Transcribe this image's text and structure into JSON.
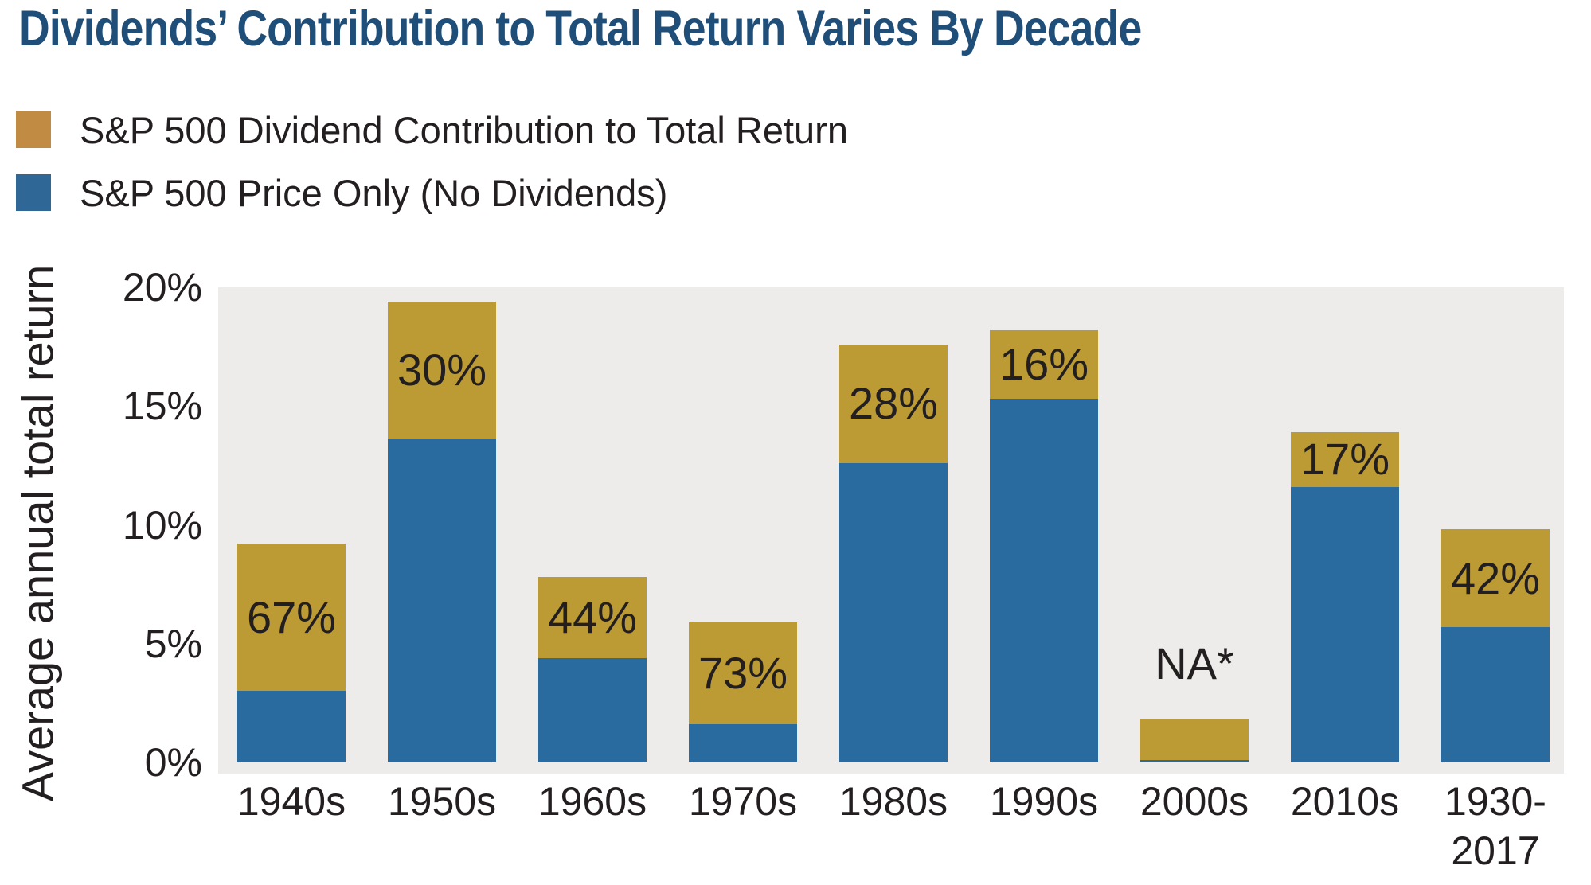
{
  "title": {
    "text": "Dividends’ Contribution to Total Return Varies By Decade",
    "color": "#1F4E79"
  },
  "legend": {
    "items": [
      {
        "label": "S&P 500 Dividend Contribution to Total Return",
        "color": "#C28B43"
      },
      {
        "label": "S&P 500 Price Only (No Dividends)",
        "color": "#2F6896"
      }
    ]
  },
  "chart_data": {
    "type": "bar",
    "stacked": true,
    "title": "Dividends’ Contribution to Total Return Varies By Decade",
    "ylabel": "Average annual total return",
    "xlabel": "",
    "categories": [
      "1940s",
      "1950s",
      "1960s",
      "1970s",
      "1980s",
      "1990s",
      "2000s",
      "2010s",
      "1930-\n2017"
    ],
    "series": [
      {
        "name": "S&P 500 Price Only (No Dividends)",
        "color": "#2A6B9F",
        "values": [
          3.0,
          13.6,
          4.4,
          1.6,
          12.6,
          15.3,
          0.1,
          11.6,
          5.7
        ]
      },
      {
        "name": "S&P 500 Dividend Contribution to Total Return",
        "color": "#BC9B35",
        "values": [
          6.2,
          5.8,
          3.4,
          4.3,
          5.0,
          2.9,
          1.7,
          2.3,
          4.1
        ]
      }
    ],
    "totals": [
      9.2,
      19.4,
      7.8,
      5.9,
      17.6,
      18.2,
      1.8,
      13.9,
      9.8
    ],
    "bar_labels": [
      "67%",
      "30%",
      "44%",
      "73%",
      "28%",
      "16%",
      "NA*",
      "17%",
      "42%"
    ],
    "bar_label_positions": [
      "inside",
      "inside",
      "inside",
      "inside",
      "inside",
      "inside",
      "above",
      "inside",
      "inside"
    ],
    "yticks": [
      {
        "label": "20%",
        "value": 20
      },
      {
        "label": "15%",
        "value": 15
      },
      {
        "label": "10%",
        "value": 10
      },
      {
        "label": "5%",
        "value": 5
      },
      {
        "label": "0%",
        "value": 0
      }
    ],
    "ylim": [
      0,
      20
    ],
    "grid": false,
    "legend_position": "top-left",
    "plot_background": "#EDECEB",
    "label_color": "#231F20"
  }
}
